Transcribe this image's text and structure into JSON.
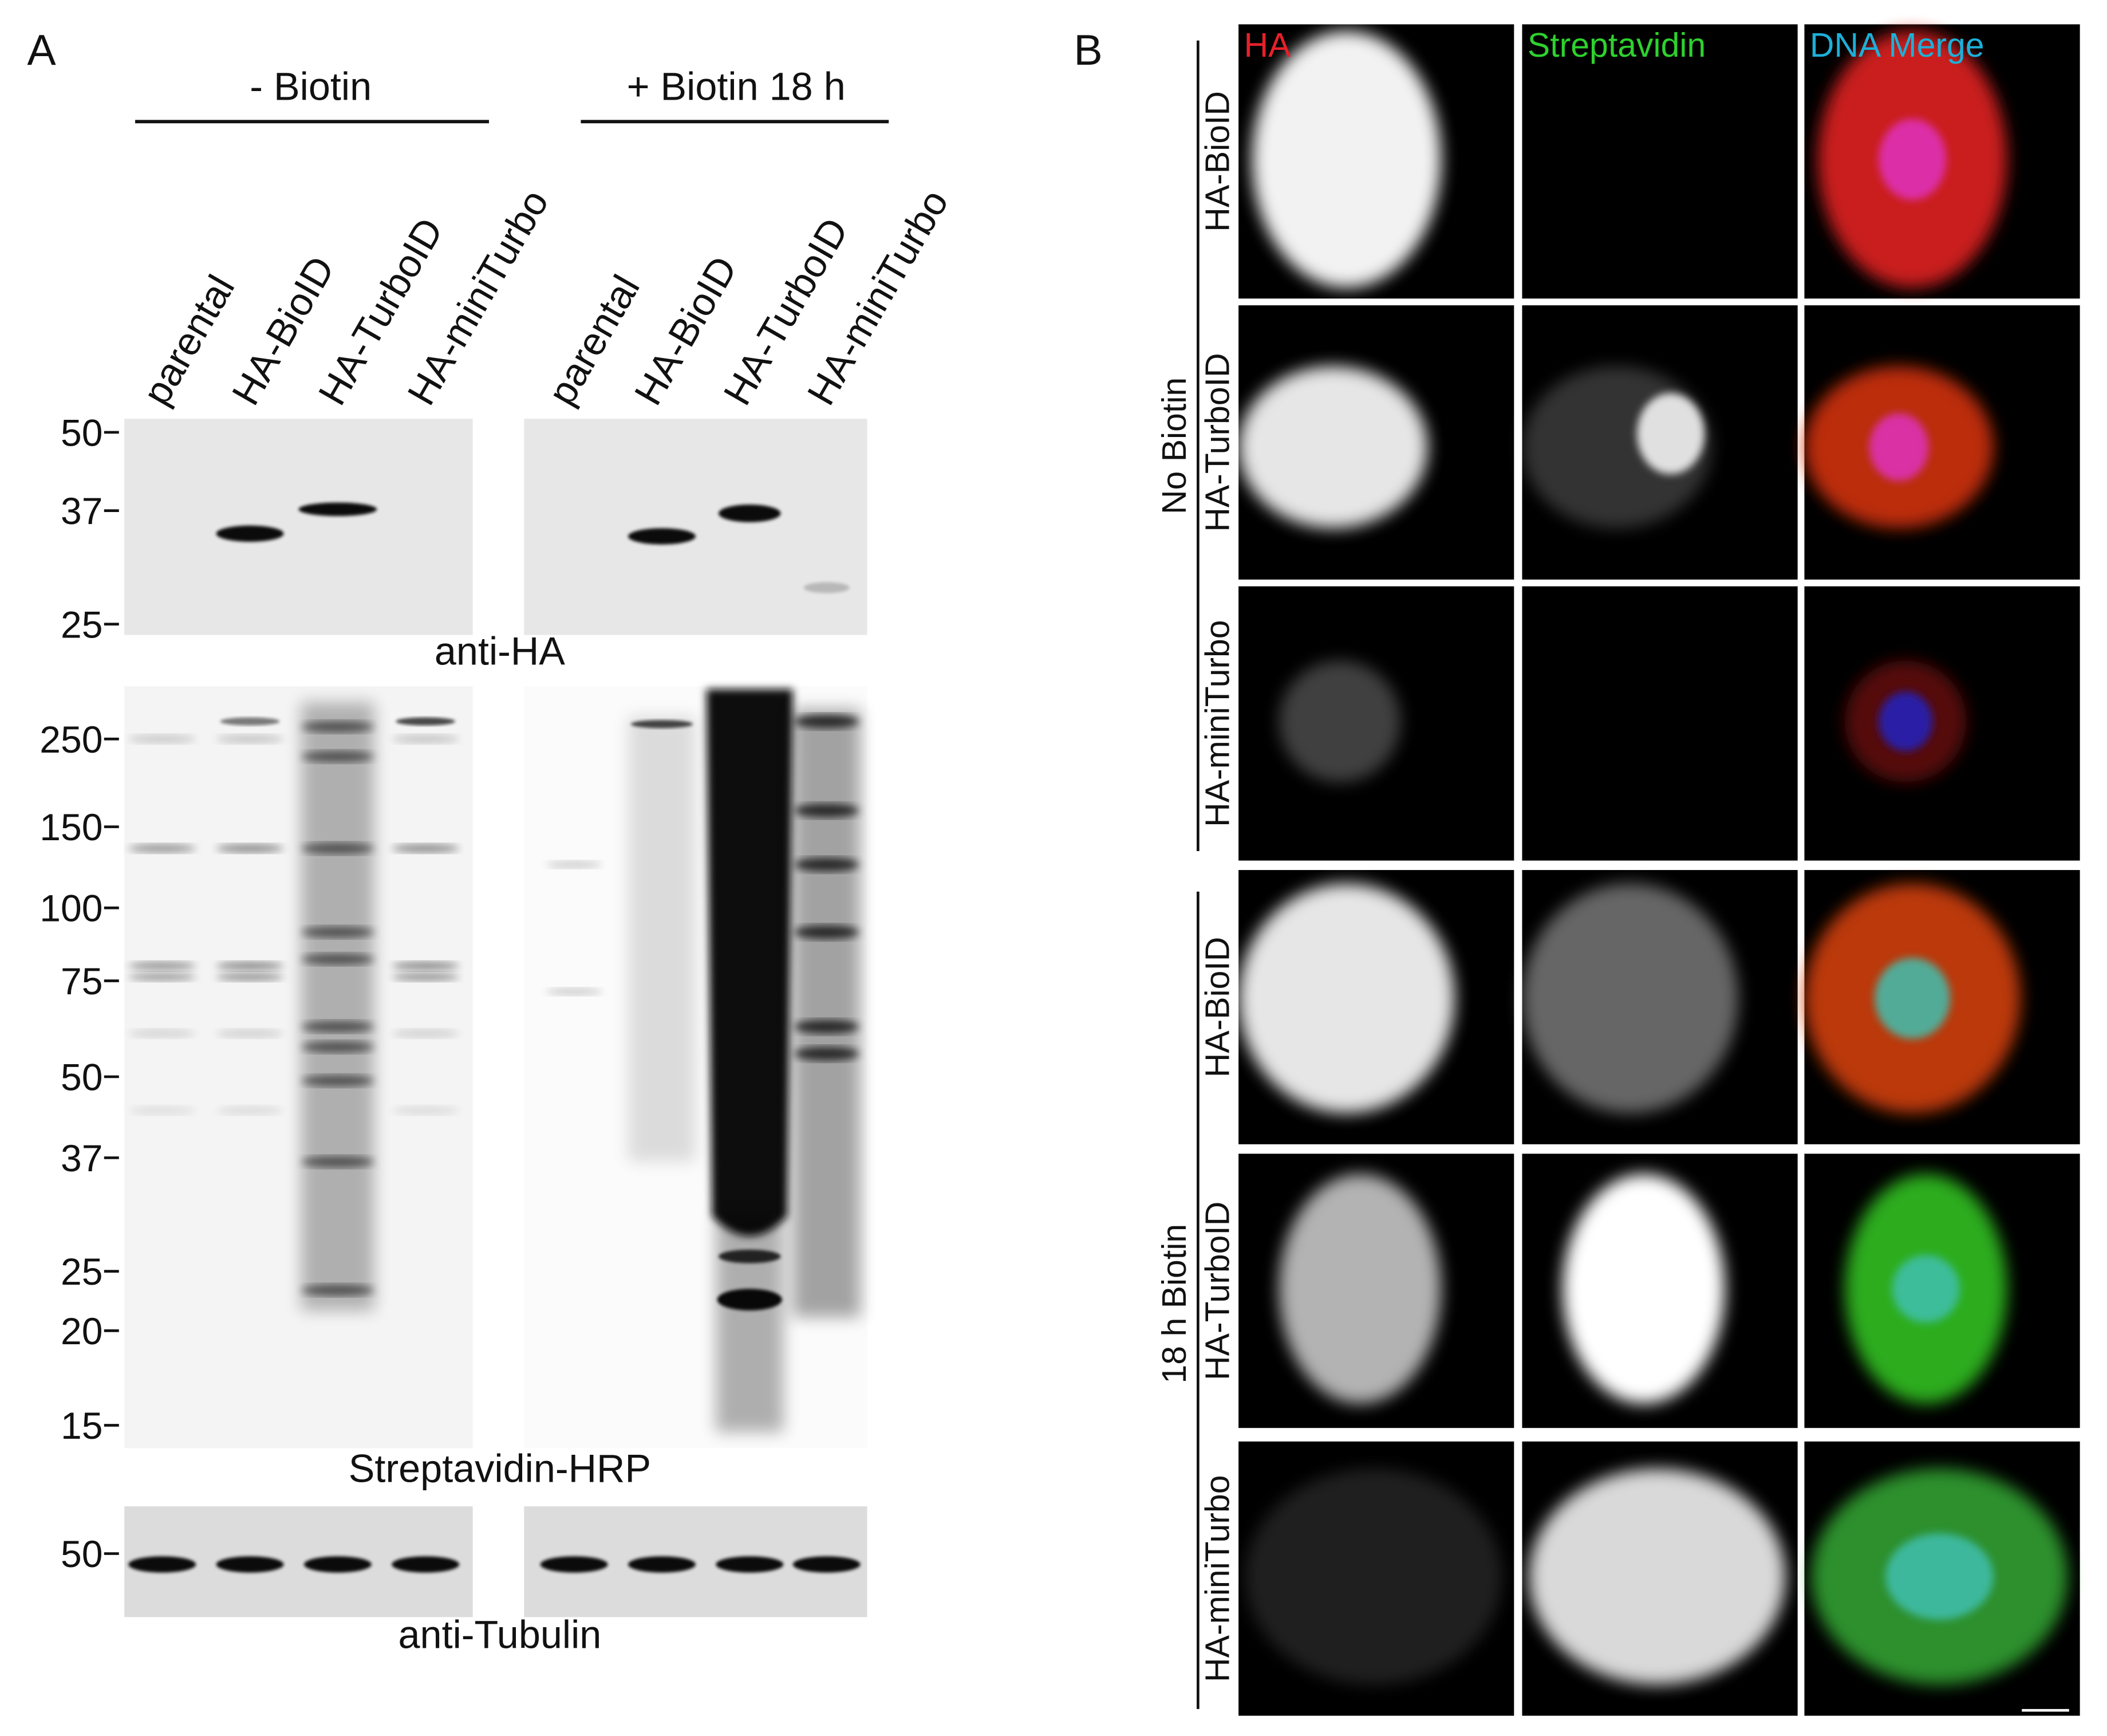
{
  "panel_a": {
    "label": "A",
    "groups": [
      "- Biotin",
      "+ Biotin 18 h"
    ],
    "lanes": [
      "parental",
      "HA-BioID",
      "HA-TurboID",
      "HA-miniTurbo",
      "parental",
      "HA-BioID",
      "HA-TurboID",
      "HA-miniTurbo"
    ],
    "blots": [
      {
        "name": "anti-HA",
        "markers": [
          "50",
          "37",
          "25"
        ]
      },
      {
        "name": "Streptavidin-HRP",
        "markers": [
          "250",
          "150",
          "100",
          "75",
          "50",
          "37",
          "25",
          "20",
          "15"
        ]
      },
      {
        "name": "anti-Tubulin",
        "markers": [
          "50"
        ]
      }
    ]
  },
  "panel_b": {
    "label": "B",
    "channels": [
      "HA",
      "Streptavidin",
      "DNA Merge"
    ],
    "conditions": [
      {
        "name": "No Biotin",
        "rows": [
          "HA-BioID",
          "HA-TurboID",
          "HA-miniTurbo"
        ]
      },
      {
        "name": "18 h Biotin",
        "rows": [
          "HA-BioID",
          "HA-TurboID",
          "HA-miniTurbo"
        ]
      }
    ]
  }
}
